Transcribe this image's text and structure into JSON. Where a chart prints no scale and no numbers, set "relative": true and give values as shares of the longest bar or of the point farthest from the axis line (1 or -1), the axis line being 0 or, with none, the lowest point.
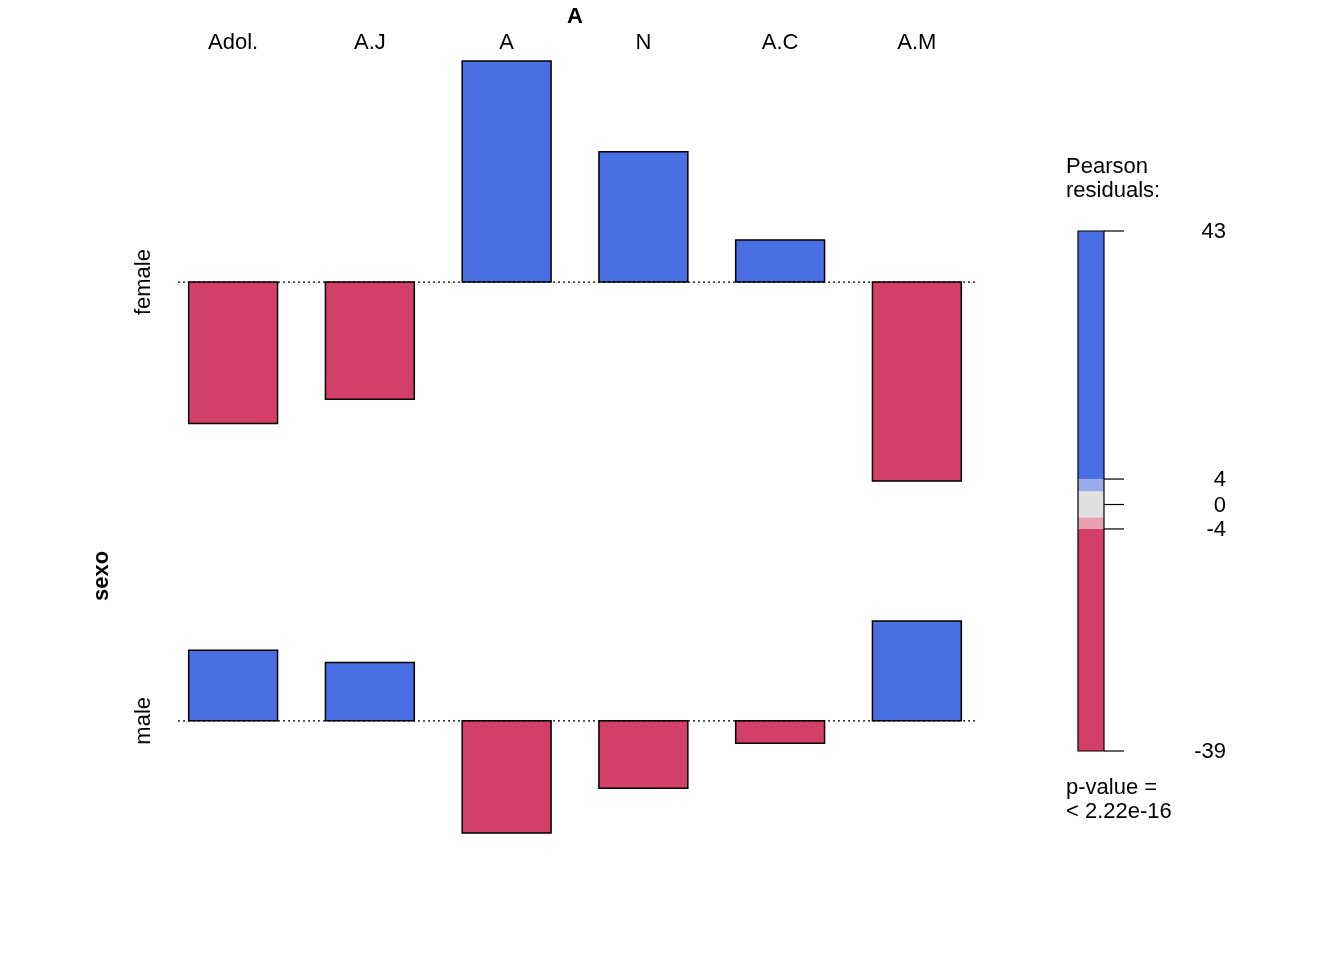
{
  "chart_data": [
    {
      "type": "bar",
      "title": "A",
      "relative": true,
      "categories": [
        "Adol.",
        "A.J",
        "A",
        "N",
        "A.C",
        "A.M"
      ],
      "ylabel": "female",
      "values": [
        -0.64,
        -0.53,
        1,
        0.59,
        0.19,
        -0.9
      ],
      "colors": [
        "#d33f6a",
        "#d33f6a",
        "#4a6fe3",
        "#4a6fe3",
        "#4a6fe3",
        "#d33f6a"
      ],
      "ref_lines": [
        {
          "axis": "y",
          "value": 0,
          "line_style": "dotted"
        }
      ],
      "annotations": [
        "sexo"
      ]
    },
    {
      "type": "bar",
      "relative": true,
      "categories": [
        null,
        null,
        null,
        null,
        null,
        null
      ],
      "ylabel": "male",
      "values": [
        0.63,
        0.52,
        -1,
        -0.6,
        -0.2,
        0.89
      ],
      "colors": [
        "#4a6fe3",
        "#4a6fe3",
        "#d33f6a",
        "#d33f6a",
        "#d33f6a",
        "#4a6fe3"
      ],
      "ref_lines": [
        {
          "axis": "y",
          "value": 0,
          "line_style": "dotted"
        }
      ]
    },
    {
      "type": "other",
      "legend_title": "Pearson residuals:",
      "colors": [
        "#4a6fe3",
        "#9aaae8",
        "#e0e0e0",
        "#e8a0b2",
        "#d33f6a"
      ],
      "annotations": [
        "43",
        "4",
        "0",
        "-4",
        "-39",
        "p-value =\n< 2.22e-16"
      ]
    }
  ]
}
